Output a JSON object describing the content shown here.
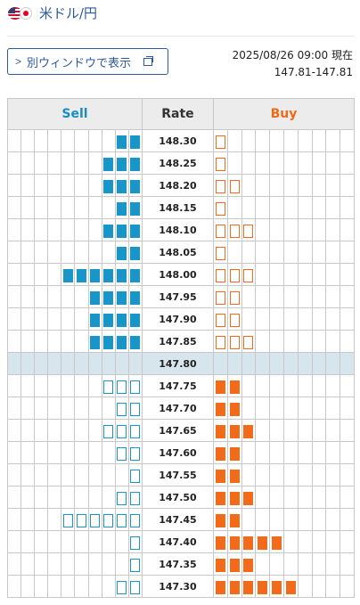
{
  "header": {
    "pair": "米ドル/円",
    "popout_label": "別ウィンドウで表示"
  },
  "timestamp": "2025/08/26 09:00 現在",
  "bid_ask": "147.81-147.81",
  "columns": {
    "sell": "Sell",
    "rate": "Rate",
    "buy": "Buy"
  },
  "colors": {
    "sell": "#1896ca",
    "buy": "#f26b1a",
    "mid_row": "#d6e6ec"
  },
  "rows": [
    {
      "rate": "148.30",
      "sell": 2,
      "sell_filled": true,
      "buy": 1,
      "buy_filled": false
    },
    {
      "rate": "148.25",
      "sell": 3,
      "sell_filled": true,
      "buy": 1,
      "buy_filled": false
    },
    {
      "rate": "148.20",
      "sell": 3,
      "sell_filled": true,
      "buy": 2,
      "buy_filled": false
    },
    {
      "rate": "148.15",
      "sell": 2,
      "sell_filled": true,
      "buy": 1,
      "buy_filled": false
    },
    {
      "rate": "148.10",
      "sell": 3,
      "sell_filled": true,
      "buy": 3,
      "buy_filled": false
    },
    {
      "rate": "148.05",
      "sell": 2,
      "sell_filled": true,
      "buy": 1,
      "buy_filled": false
    },
    {
      "rate": "148.00",
      "sell": 6,
      "sell_filled": true,
      "buy": 3,
      "buy_filled": false
    },
    {
      "rate": "147.95",
      "sell": 4,
      "sell_filled": true,
      "buy": 2,
      "buy_filled": false
    },
    {
      "rate": "147.90",
      "sell": 4,
      "sell_filled": true,
      "buy": 2,
      "buy_filled": false
    },
    {
      "rate": "147.85",
      "sell": 4,
      "sell_filled": true,
      "buy": 3,
      "buy_filled": false
    },
    {
      "rate": "147.80",
      "sell": 0,
      "sell_filled": true,
      "buy": 0,
      "buy_filled": true,
      "current": true
    },
    {
      "rate": "147.75",
      "sell": 3,
      "sell_filled": false,
      "buy": 2,
      "buy_filled": true
    },
    {
      "rate": "147.70",
      "sell": 2,
      "sell_filled": false,
      "buy": 2,
      "buy_filled": true
    },
    {
      "rate": "147.65",
      "sell": 3,
      "sell_filled": false,
      "buy": 3,
      "buy_filled": true
    },
    {
      "rate": "147.60",
      "sell": 2,
      "sell_filled": false,
      "buy": 2,
      "buy_filled": true
    },
    {
      "rate": "147.55",
      "sell": 1,
      "sell_filled": false,
      "buy": 2,
      "buy_filled": true
    },
    {
      "rate": "147.50",
      "sell": 2,
      "sell_filled": false,
      "buy": 3,
      "buy_filled": true
    },
    {
      "rate": "147.45",
      "sell": 6,
      "sell_filled": false,
      "buy": 2,
      "buy_filled": true
    },
    {
      "rate": "147.40",
      "sell": 1,
      "sell_filled": false,
      "buy": 5,
      "buy_filled": true
    },
    {
      "rate": "147.35",
      "sell": 1,
      "sell_filled": false,
      "buy": 3,
      "buy_filled": true
    },
    {
      "rate": "147.30",
      "sell": 2,
      "sell_filled": false,
      "buy": 6,
      "buy_filled": true
    }
  ]
}
